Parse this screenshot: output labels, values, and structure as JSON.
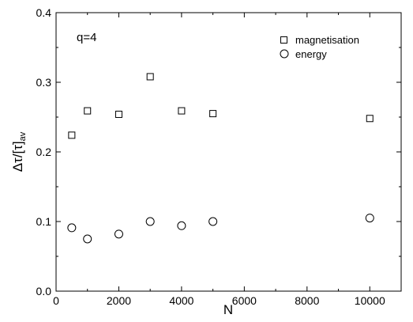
{
  "chart_data": {
    "type": "scatter",
    "xlabel": "N",
    "ylabel": {
      "main": "Δτ/[τ]",
      "sub": "av"
    },
    "xlim": [
      0,
      11000
    ],
    "ylim": [
      0.0,
      0.4
    ],
    "x_ticks": [
      0,
      2000,
      4000,
      6000,
      8000,
      10000
    ],
    "y_ticks": [
      0.0,
      0.1,
      0.2,
      0.3,
      0.4
    ],
    "x_tick_labels": [
      "0",
      "2000",
      "4000",
      "6000",
      "8000",
      "10000"
    ],
    "y_tick_labels": [
      "0.0",
      "0.1",
      "0.2",
      "0.3",
      "0.4"
    ],
    "annotation": "q=4",
    "legend_position": "top-right",
    "grid": false,
    "series": [
      {
        "name": "magnetisation",
        "marker": "square",
        "x": [
          500,
          1000,
          2000,
          3000,
          4000,
          5000,
          10000
        ],
        "y": [
          0.224,
          0.259,
          0.254,
          0.308,
          0.259,
          0.255,
          0.248
        ]
      },
      {
        "name": "energy",
        "marker": "circle",
        "x": [
          500,
          1000,
          2000,
          3000,
          4000,
          5000,
          10000
        ],
        "y": [
          0.091,
          0.075,
          0.082,
          0.1,
          0.094,
          0.1,
          0.105
        ]
      }
    ]
  }
}
